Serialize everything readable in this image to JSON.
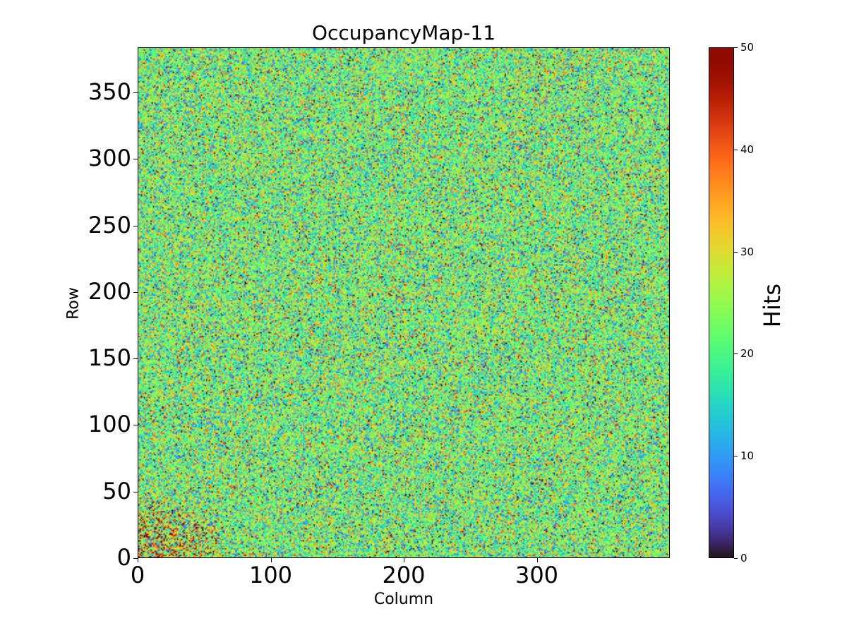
{
  "chart_data": {
    "type": "heatmap",
    "title": "OccupancyMap-11",
    "xlabel": "Column",
    "ylabel": "Row",
    "colorbar_label": "Hits",
    "colormap": "turbo",
    "xlim": [
      0,
      400
    ],
    "ylim": [
      0,
      384
    ],
    "clim": [
      0,
      50
    ],
    "n_columns": 400,
    "n_rows": 384,
    "xticks": [
      "0",
      "100",
      "200",
      "300"
    ],
    "xtick_values": [
      0,
      100,
      200,
      300
    ],
    "yticks": [
      "0",
      "50",
      "100",
      "150",
      "200",
      "250",
      "300",
      "350"
    ],
    "ytick_values": [
      0,
      50,
      100,
      150,
      200,
      250,
      300,
      350
    ],
    "cbar_ticks": [
      "0",
      "10",
      "20",
      "30",
      "40",
      "50"
    ],
    "cbar_tick_values": [
      0,
      10,
      20,
      30,
      40,
      50
    ],
    "distribution": {
      "mean_hits": 22,
      "std_hits": 9
    },
    "hotspot": {
      "columns": [
        0,
        60
      ],
      "rows": [
        0,
        40
      ],
      "mean_hits": 38
    }
  }
}
